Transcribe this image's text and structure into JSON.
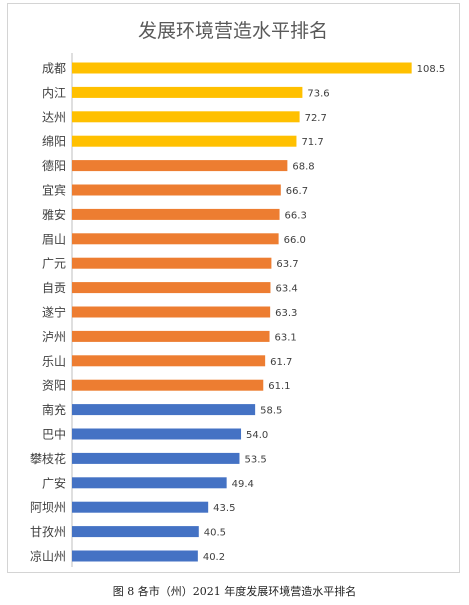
{
  "chart_data": {
    "type": "bar",
    "orientation": "horizontal",
    "title": "发展环境营造水平排名",
    "categories": [
      "成都",
      "内江",
      "达州",
      "绵阳",
      "德阳",
      "宜宾",
      "雅安",
      "眉山",
      "广元",
      "自贡",
      "遂宁",
      "泸州",
      "乐山",
      "资阳",
      "南充",
      "巴中",
      "攀枝花",
      "广安",
      "阿坝州",
      "甘孜州",
      "凉山州"
    ],
    "values": [
      108.5,
      73.6,
      72.7,
      71.7,
      68.8,
      66.7,
      66.3,
      66.0,
      63.7,
      63.4,
      63.3,
      63.1,
      61.7,
      61.1,
      58.5,
      54.0,
      53.5,
      49.4,
      43.5,
      40.5,
      40.2
    ],
    "value_labels": [
      "108.5",
      "73.6",
      "72.7",
      "71.7",
      "68.8",
      "66.7",
      "66.3",
      "66.0",
      "63.7",
      "63.4",
      "63.3",
      "63.1",
      "61.7",
      "61.1",
      "58.5",
      "54.0",
      "53.5",
      "49.4",
      "43.5",
      "40.5",
      "40.2"
    ],
    "bar_colors": [
      "#FFC000",
      "#FFC000",
      "#FFC000",
      "#FFC000",
      "#ED7D31",
      "#ED7D31",
      "#ED7D31",
      "#ED7D31",
      "#ED7D31",
      "#ED7D31",
      "#ED7D31",
      "#ED7D31",
      "#ED7D31",
      "#ED7D31",
      "#4472C4",
      "#4472C4",
      "#4472C4",
      "#4472C4",
      "#4472C4",
      "#4472C4",
      "#4472C4"
    ],
    "xlim": [
      0,
      115
    ],
    "grid": false,
    "legend": "none"
  },
  "caption": "图 8 各市（州）2021 年度发展环境营造水平排名"
}
